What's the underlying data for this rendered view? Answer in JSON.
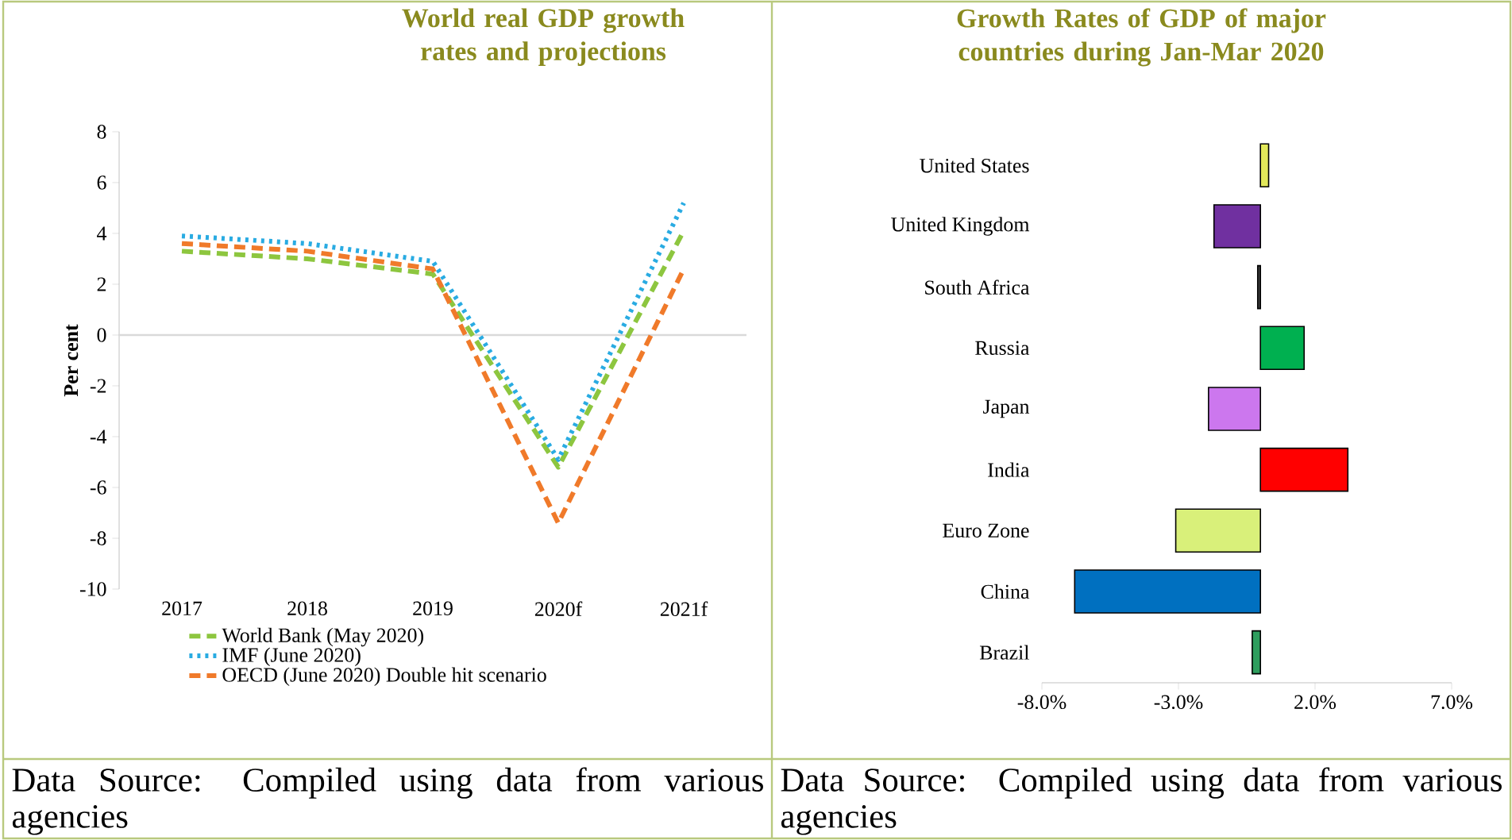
{
  "chart_data": [
    {
      "type": "line",
      "title": "World real GDP growth rates and projections",
      "ylabel": "Per cent",
      "categories": [
        "2017",
        "2018",
        "2019",
        "2020f",
        "2021f"
      ],
      "series": [
        {
          "name": "World Bank (May 2020)",
          "color": "#8dc63f",
          "line_style": "dashed",
          "values": [
            3.3,
            3.0,
            2.4,
            -5.2,
            4.1
          ]
        },
        {
          "name": "IMF (June 2020)",
          "color": "#29abe2",
          "line_style": "dotted",
          "values": [
            3.9,
            3.6,
            2.9,
            -4.9,
            5.2
          ]
        },
        {
          "name": "OECD (June 2020) Double hit scenario",
          "color": "#f07a2a",
          "line_style": "dashed",
          "values": [
            3.6,
            3.3,
            2.6,
            -7.4,
            2.6
          ]
        }
      ],
      "ylim": [
        -10,
        8
      ],
      "yticks": [
        -10,
        -8,
        -6,
        -4,
        -2,
        0,
        2,
        4,
        6,
        8
      ],
      "legend": "bottom",
      "annotations": [
        "Data Source: Compiled using data from various agencies"
      ]
    },
    {
      "type": "bar",
      "orientation": "horizontal",
      "title": "Growth Rates of GDP of major countries during Jan-Mar 2020",
      "categories": [
        "United States",
        "United Kingdom",
        "South Africa",
        "Russia",
        "Japan",
        "India",
        "Euro Zone",
        "China",
        "Brazil"
      ],
      "values": [
        0.3,
        -1.7,
        -0.1,
        1.6,
        -1.9,
        3.2,
        -3.1,
        -6.8,
        -0.3
      ],
      "colors": [
        "#e2e85a",
        "#7030a0",
        "#404040",
        "#00b050",
        "#cc77ee",
        "#ff0000",
        "#d9f07a",
        "#0070c0",
        "#2e9e5e"
      ],
      "xlim": [
        -8,
        7
      ],
      "xticks": [
        {
          "value": -8,
          "label": "-8.0%"
        },
        {
          "value": -3,
          "label": "-3.0%"
        },
        {
          "value": 2,
          "label": "2.0%"
        },
        {
          "value": 7,
          "label": "7.0%"
        }
      ],
      "annotations": [
        "Data Source: Compiled using data from various agencies"
      ]
    }
  ]
}
